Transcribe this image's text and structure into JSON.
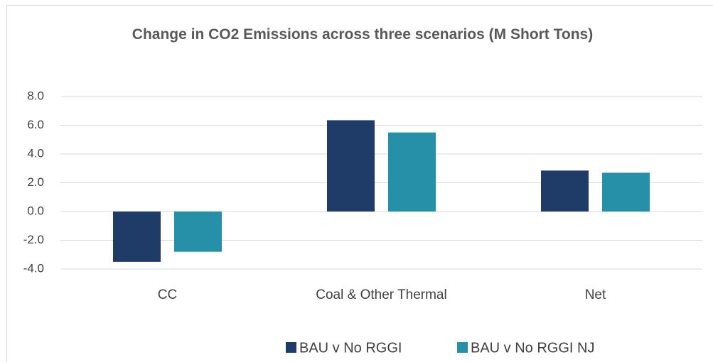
{
  "chart_data": {
    "type": "bar",
    "title": "Change in CO2 Emissions across three scenarios (M Short Tons)",
    "categories": [
      "CC",
      "Coal & Other Thermal",
      "Net"
    ],
    "series": [
      {
        "name": "BAU v No RGGI",
        "color": "#1f3b68",
        "values": [
          -3.5,
          6.35,
          2.85
        ]
      },
      {
        "name": "BAU v No RGGI NJ",
        "color": "#2590a8",
        "values": [
          -2.8,
          5.5,
          2.7
        ]
      }
    ],
    "ylim": [
      -4,
      8
    ],
    "yticks": [
      {
        "value": -4,
        "label": "-4.0"
      },
      {
        "value": -2,
        "label": "-2.0"
      },
      {
        "value": 0,
        "label": "0.0"
      },
      {
        "value": 2,
        "label": "2.0"
      },
      {
        "value": 4,
        "label": "4.0"
      },
      {
        "value": 6,
        "label": "6.0"
      },
      {
        "value": 8,
        "label": "8.0"
      }
    ],
    "grid": true,
    "legend": "bottom"
  }
}
